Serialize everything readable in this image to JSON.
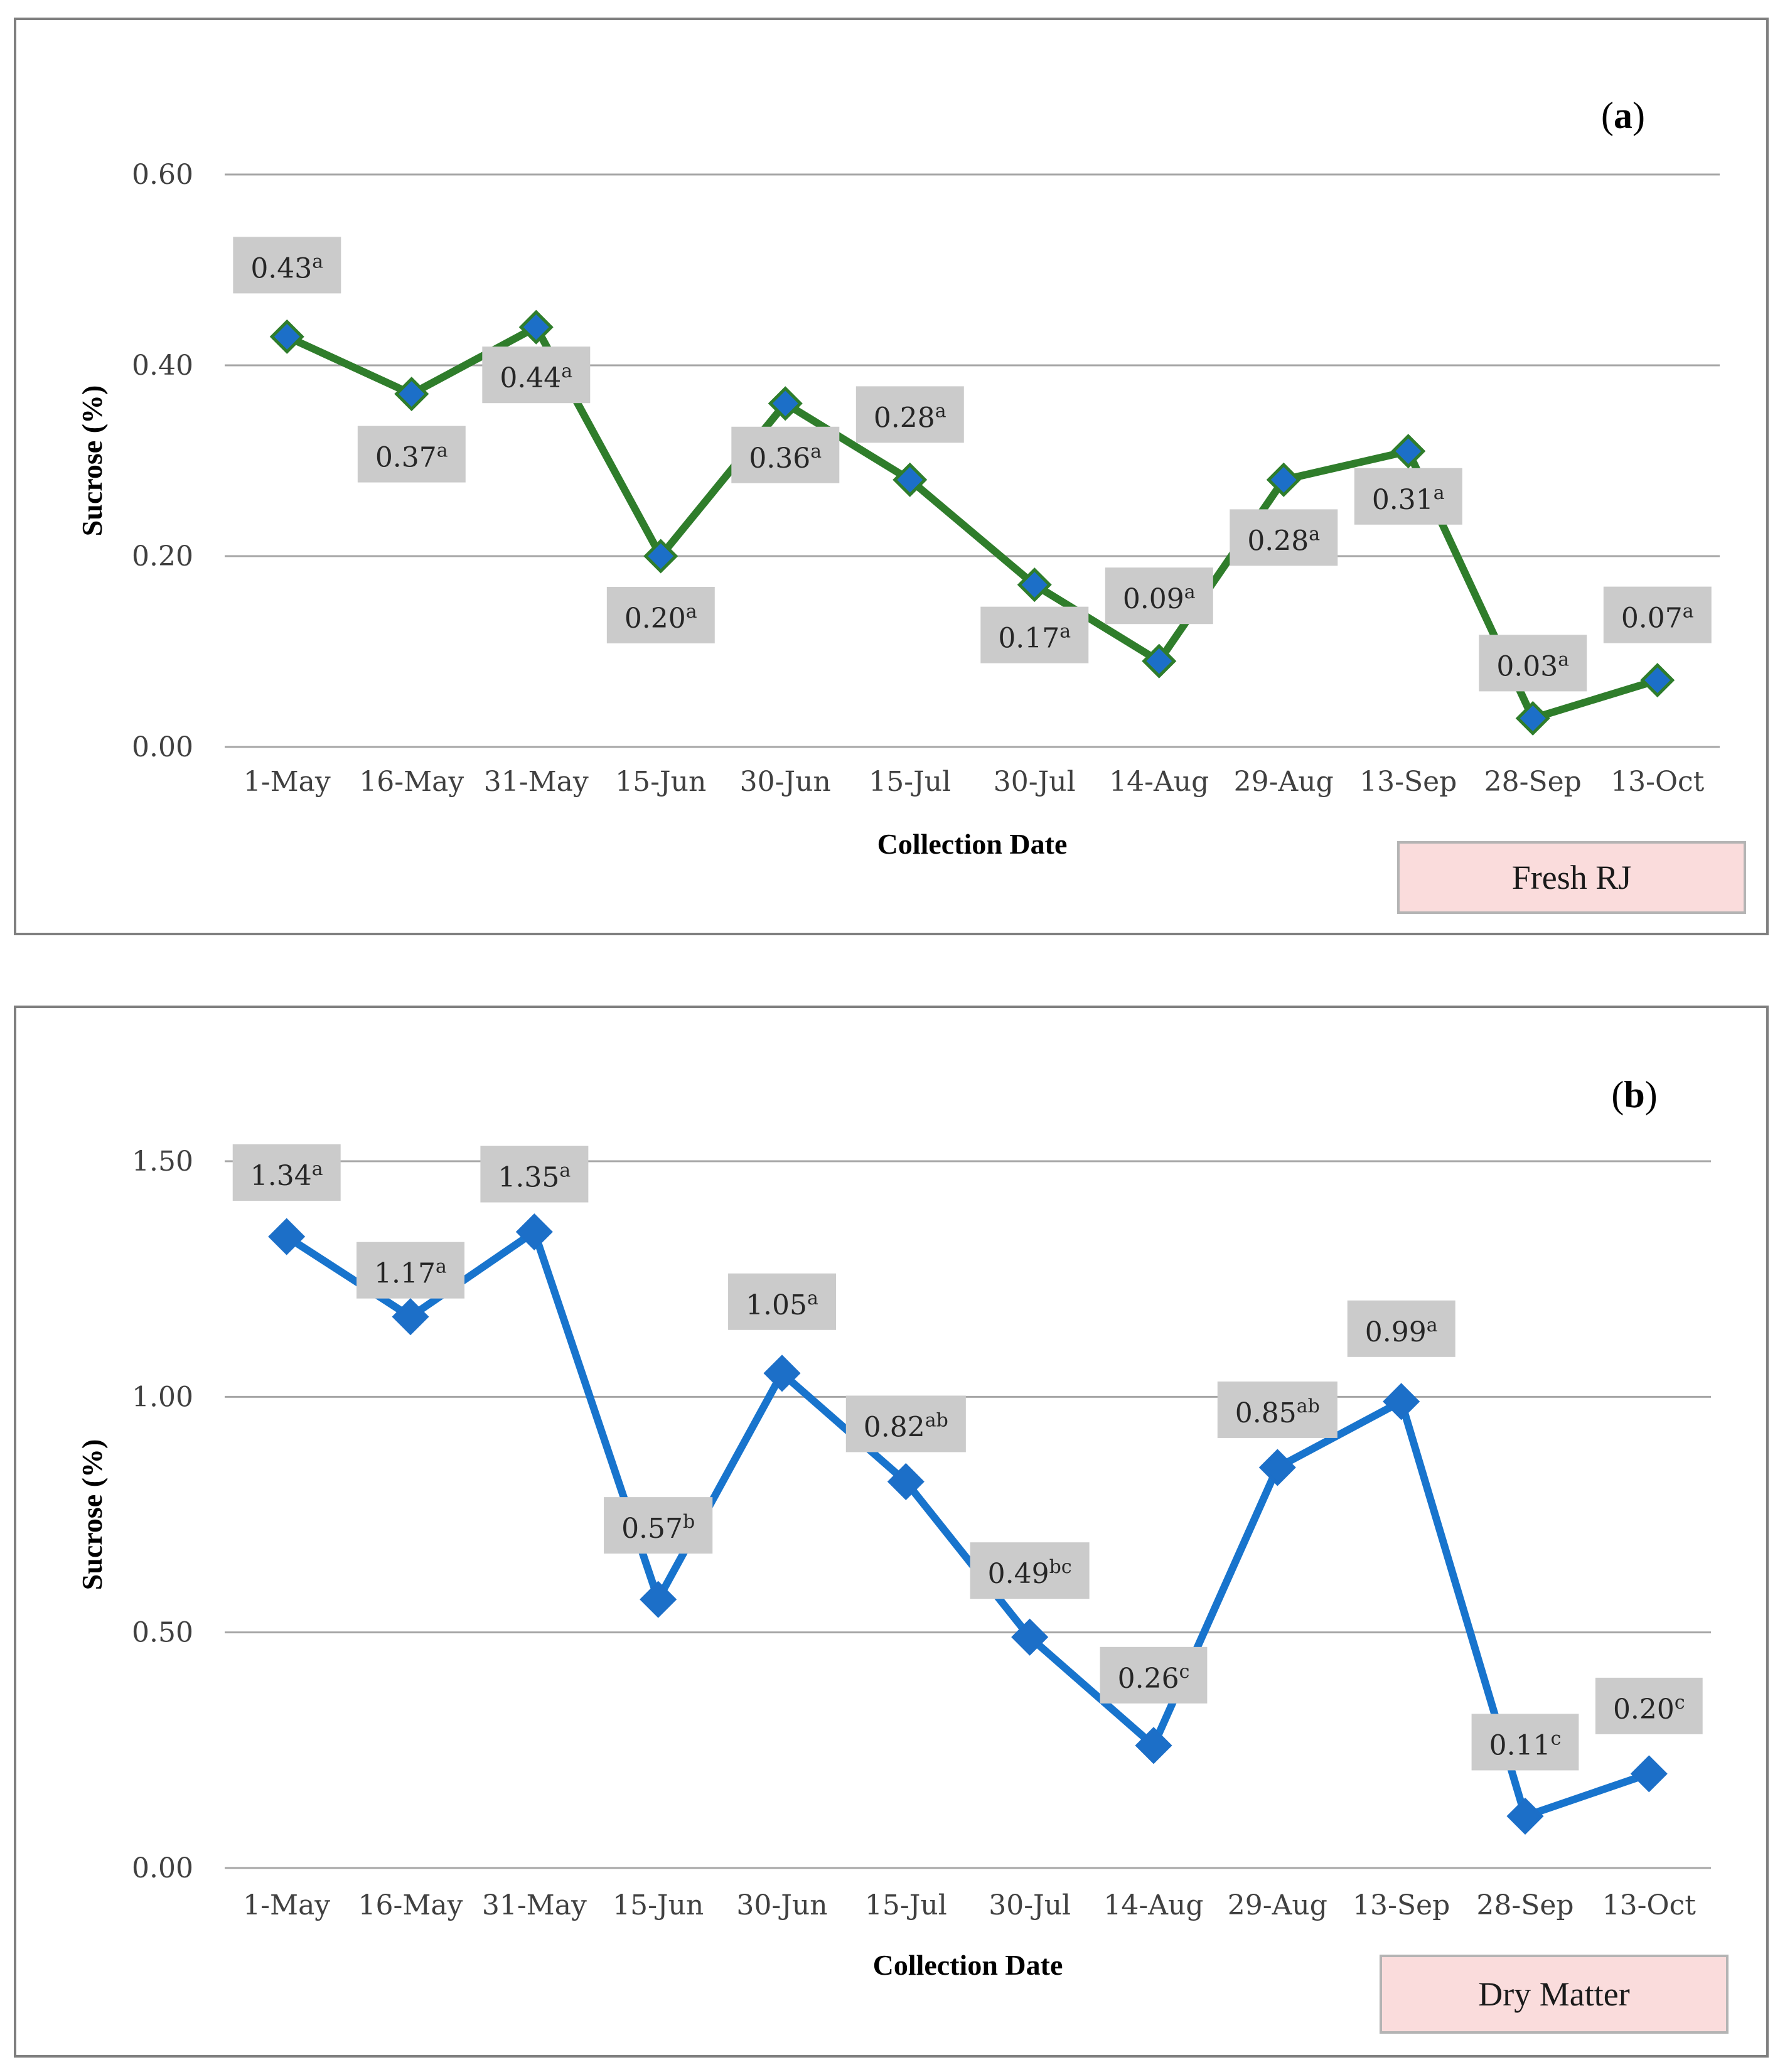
{
  "colors": {
    "panel_a_line": "#2f7d2b",
    "panel_b_line": "#1874cd",
    "marker": "#1c6fc8",
    "label_bg": "#cbcbcb",
    "legend_bg": "#fadcdc"
  },
  "chart_data": [
    {
      "type": "line",
      "panel_letter": "a",
      "title": "",
      "xlabel": "Collection Date",
      "ylabel": "Sucrose (%)",
      "ylim": [
        0,
        0.6
      ],
      "yticks": [
        "0.00",
        "0.20",
        "0.40",
        "0.60"
      ],
      "categories": [
        "1-May",
        "16-May",
        "31-May",
        "15-Jun",
        "30-Jun",
        "15-Jul",
        "30-Jul",
        "14-Aug",
        "29-Aug",
        "13-Sep",
        "28-Sep",
        "13-Oct"
      ],
      "series": [
        {
          "name": "Fresh RJ",
          "values": [
            0.43,
            0.37,
            0.44,
            0.2,
            0.36,
            0.28,
            0.17,
            0.09,
            0.28,
            0.31,
            0.03,
            0.07
          ],
          "labels": [
            "0.43",
            "0.37",
            "0.44",
            "0.20",
            "0.36",
            "0.28",
            "0.17",
            "0.09",
            "0.28",
            "0.31",
            "0.03",
            "0.07"
          ],
          "letters": [
            "a",
            "a",
            "a",
            "a",
            "a",
            "a",
            "a",
            "a",
            "a",
            "a",
            "a",
            "a"
          ]
        }
      ],
      "legend": "Fresh RJ",
      "grid": true
    },
    {
      "type": "line",
      "panel_letter": "b",
      "title": "",
      "xlabel": "Collection Date",
      "ylabel": "Sucrose (%)",
      "ylim": [
        0,
        1.5
      ],
      "yticks": [
        "0.00",
        "0.50",
        "1.00",
        "1.50"
      ],
      "categories": [
        "1-May",
        "16-May",
        "31-May",
        "15-Jun",
        "30-Jun",
        "15-Jul",
        "30-Jul",
        "14-Aug",
        "29-Aug",
        "13-Sep",
        "28-Sep",
        "13-Oct"
      ],
      "series": [
        {
          "name": "Dry Matter",
          "values": [
            1.34,
            1.17,
            1.35,
            0.57,
            1.05,
            0.82,
            0.49,
            0.26,
            0.85,
            0.99,
            0.11,
            0.2
          ],
          "labels": [
            "1.34",
            "1.17",
            "1.35",
            "0.57",
            "1.05",
            "0.82",
            "0.49",
            "0.26",
            "0.85",
            "0.99",
            "0.11",
            "0.20"
          ],
          "letters": [
            "a",
            "a",
            "a",
            "b",
            "a",
            "ab",
            "bc",
            "c",
            "ab",
            "a",
            "c",
            "c"
          ]
        }
      ],
      "legend": "Dry Matter",
      "grid": true
    }
  ]
}
